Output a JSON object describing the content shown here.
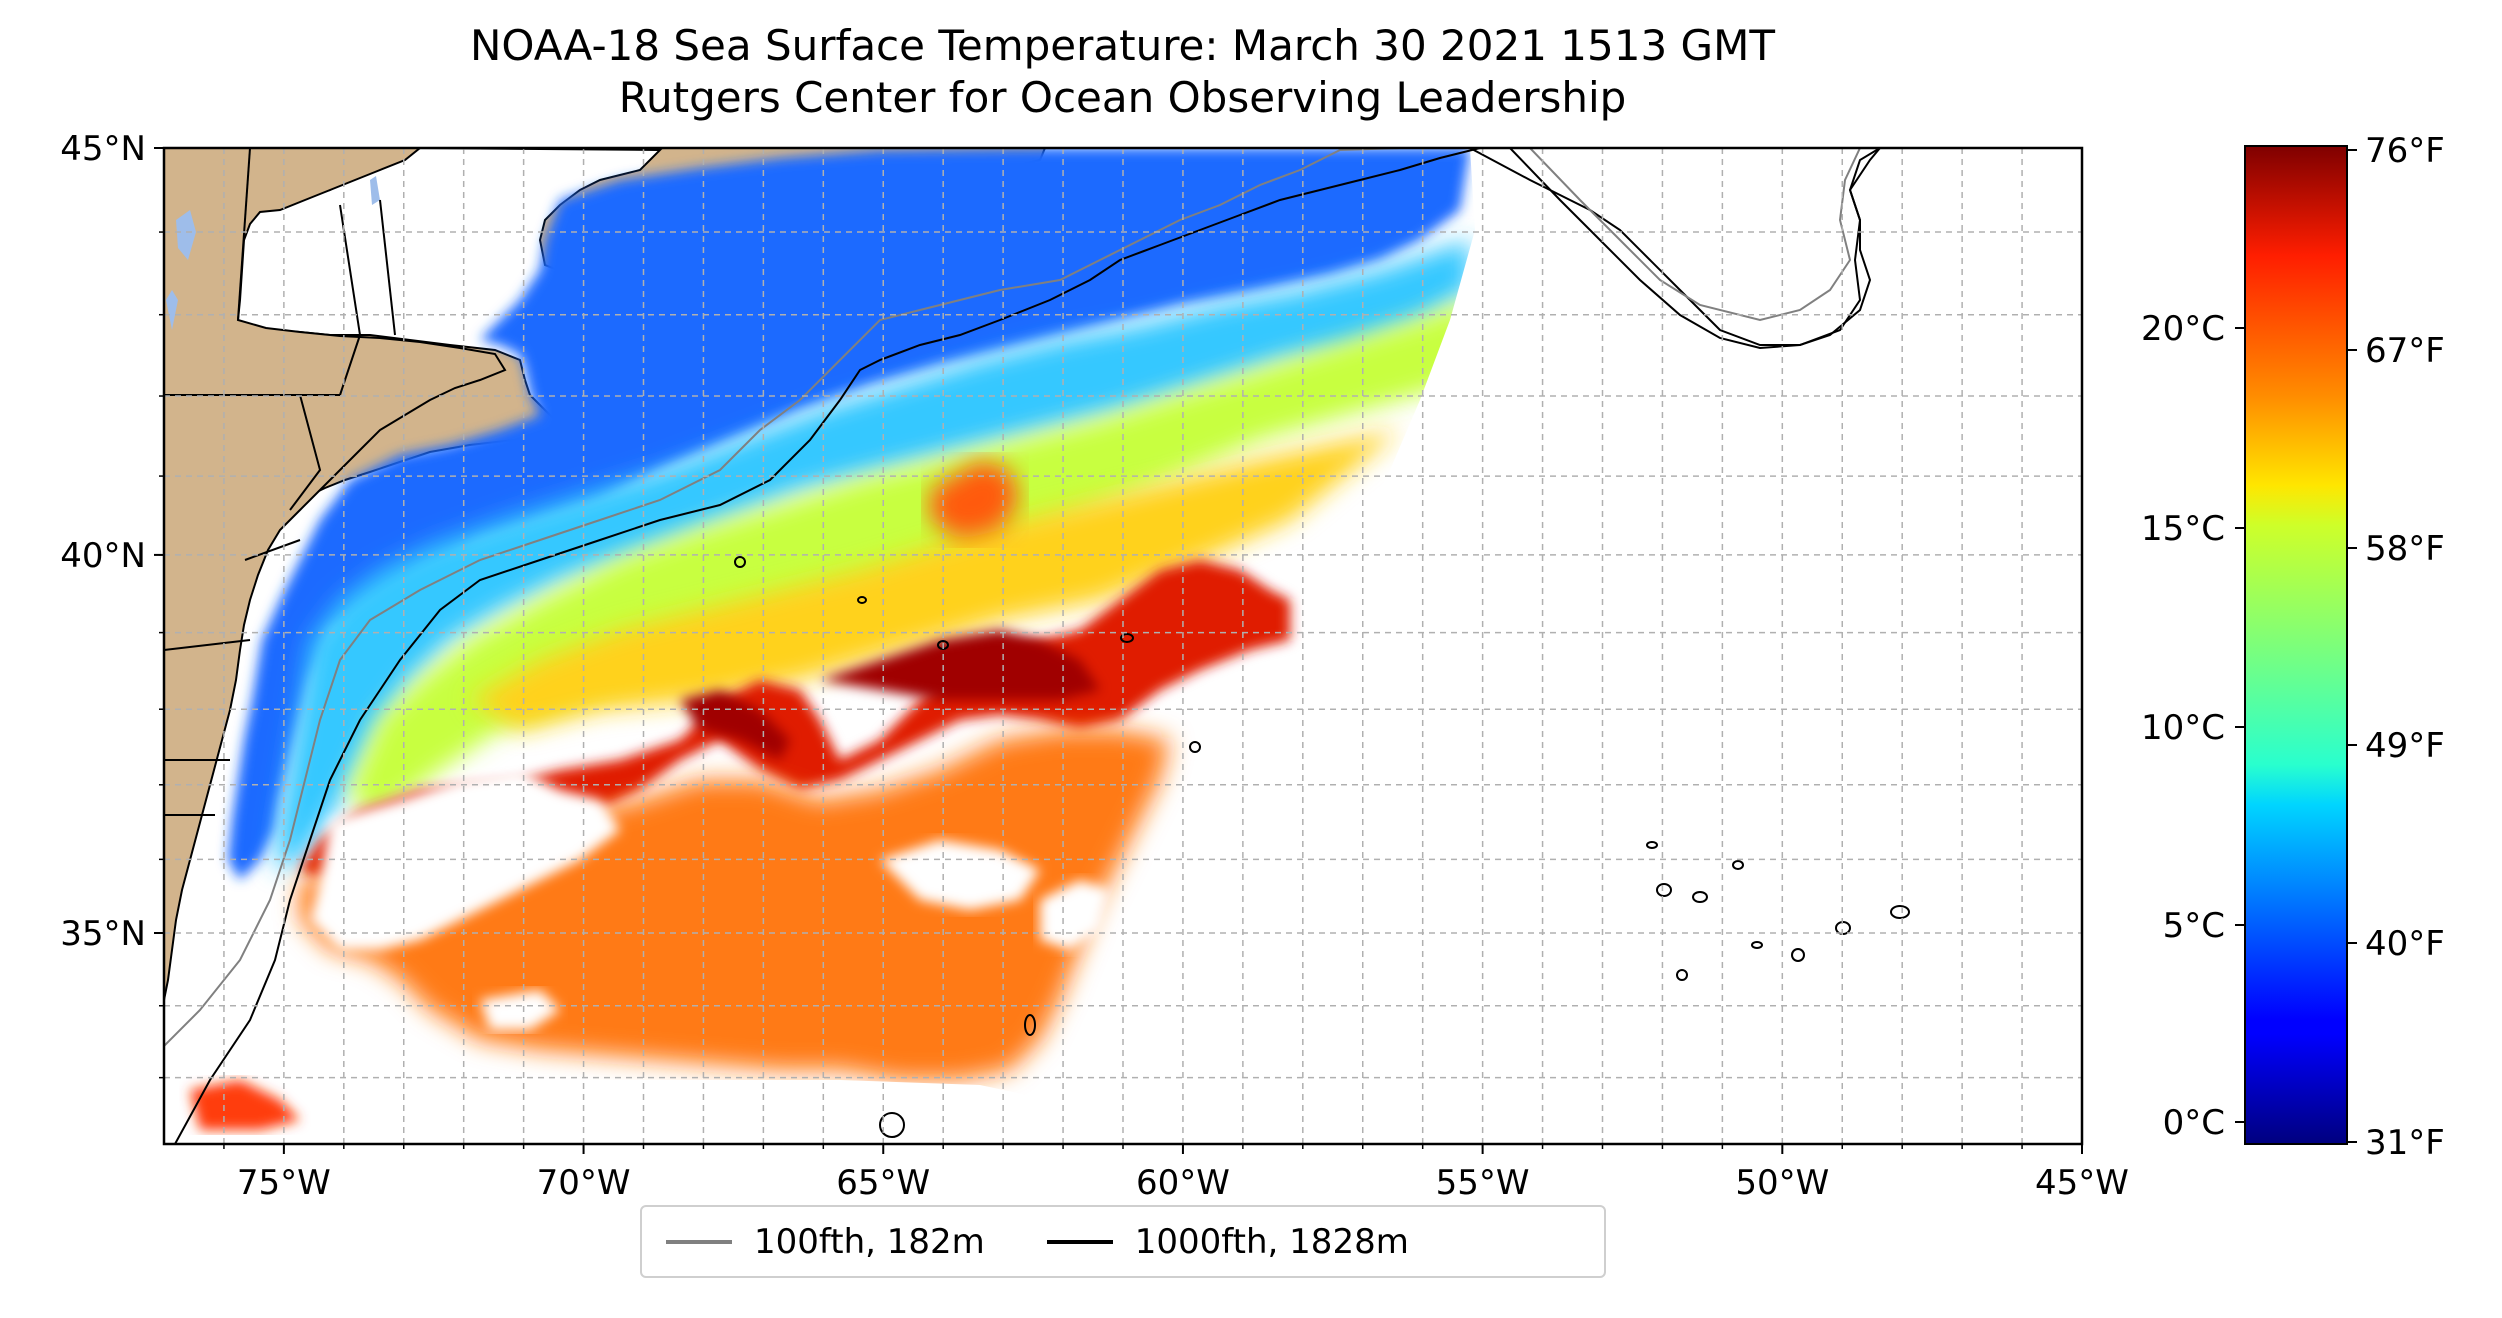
{
  "title": {
    "line1": "NOAA-18 Sea Surface Temperature: March 30 2021 1513 GMT",
    "line2": "Rutgers Center for Ocean Observing Leadership"
  },
  "map": {
    "lon_range": [
      -77,
      -45
    ],
    "lat_range": [
      32.2,
      45
    ],
    "x_ticks": [
      "75°W",
      "70°W",
      "65°W",
      "60°W",
      "55°W",
      "50°W",
      "45°W"
    ],
    "y_ticks": [
      "35°N",
      "40°N",
      "45°N"
    ],
    "gridlines": true,
    "land_color": "#d2b48c",
    "lake_color": "#9ebdea"
  },
  "colorbar": {
    "colormap": "jet",
    "celsius_ticks": [
      "20°C",
      "15°C",
      "10°C",
      "5°C",
      "0°C"
    ],
    "fahrenheit_ticks": [
      "76°F",
      "67°F",
      "58°F",
      "49°F",
      "40°F",
      "31°F"
    ]
  },
  "legend": {
    "items": [
      {
        "label": "100fth, 182m",
        "color": "#808080"
      },
      {
        "label": "1000fth, 1828m",
        "color": "#000000"
      }
    ]
  }
}
